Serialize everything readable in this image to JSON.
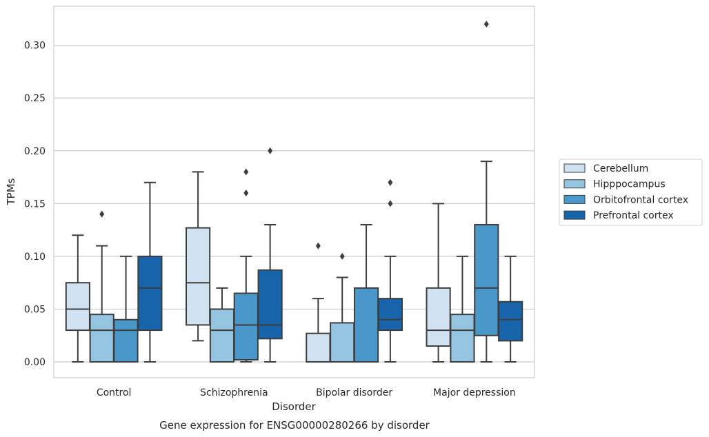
{
  "caption": "Gene expression for ENSG00000280266 by disorder",
  "chart_data": {
    "type": "box",
    "title": "",
    "xlabel": "Disorder",
    "ylabel": "TPMs",
    "ylim": [
      -0.015,
      0.337
    ],
    "yticks": [
      0.0,
      0.05,
      0.1,
      0.15,
      0.2,
      0.25,
      0.3
    ],
    "ytick_labels": [
      "0.00",
      "0.05",
      "0.10",
      "0.15",
      "0.20",
      "0.25",
      "0.30"
    ],
    "grid": "horizontal",
    "legend_position": "right",
    "categories": [
      "Control",
      "Schizophrenia",
      "Bipolar disorder",
      "Major depression"
    ],
    "series": [
      {
        "name": "Cerebellum",
        "color": "#d0e1f2",
        "boxes": [
          {
            "whislo": 0.0,
            "q1": 0.03,
            "med": 0.05,
            "q3": 0.075,
            "whishi": 0.12,
            "fliers": []
          },
          {
            "whislo": 0.02,
            "q1": 0.035,
            "med": 0.075,
            "q3": 0.127,
            "whishi": 0.18,
            "fliers": []
          },
          {
            "whislo": 0.0,
            "q1": 0.0,
            "med": 0.0,
            "q3": 0.027,
            "whishi": 0.06,
            "fliers": [
              0.11
            ]
          },
          {
            "whislo": 0.0,
            "q1": 0.015,
            "med": 0.03,
            "q3": 0.07,
            "whishi": 0.15,
            "fliers": []
          }
        ]
      },
      {
        "name": "Hipppocampus",
        "color": "#94c4df",
        "boxes": [
          {
            "whislo": 0.0,
            "q1": 0.0,
            "med": 0.03,
            "q3": 0.045,
            "whishi": 0.11,
            "fliers": [
              0.14
            ]
          },
          {
            "whislo": 0.0,
            "q1": 0.0,
            "med": 0.03,
            "q3": 0.05,
            "whishi": 0.07,
            "fliers": []
          },
          {
            "whislo": 0.0,
            "q1": 0.0,
            "med": 0.0,
            "q3": 0.037,
            "whishi": 0.08,
            "fliers": [
              0.1
            ]
          },
          {
            "whislo": 0.0,
            "q1": 0.0,
            "med": 0.03,
            "q3": 0.045,
            "whishi": 0.1,
            "fliers": []
          }
        ]
      },
      {
        "name": "Orbitofrontal cortex",
        "color": "#4a98c9",
        "boxes": [
          {
            "whislo": 0.0,
            "q1": 0.0,
            "med": 0.03,
            "q3": 0.04,
            "whishi": 0.1,
            "fliers": []
          },
          {
            "whislo": 0.0,
            "q1": 0.002,
            "med": 0.035,
            "q3": 0.065,
            "whishi": 0.1,
            "fliers": [
              0.16,
              0.18
            ]
          },
          {
            "whislo": 0.0,
            "q1": 0.0,
            "med": 0.0,
            "q3": 0.07,
            "whishi": 0.13,
            "fliers": []
          },
          {
            "whislo": 0.0,
            "q1": 0.025,
            "med": 0.07,
            "q3": 0.13,
            "whishi": 0.19,
            "fliers": [
              0.32
            ]
          }
        ]
      },
      {
        "name": "Prefrontal cortex",
        "color": "#1764ab",
        "boxes": [
          {
            "whislo": 0.0,
            "q1": 0.03,
            "med": 0.07,
            "q3": 0.1,
            "whishi": 0.17,
            "fliers": []
          },
          {
            "whislo": 0.0,
            "q1": 0.022,
            "med": 0.035,
            "q3": 0.087,
            "whishi": 0.13,
            "fliers": [
              0.2
            ]
          },
          {
            "whislo": 0.0,
            "q1": 0.03,
            "med": 0.04,
            "q3": 0.06,
            "whishi": 0.1,
            "fliers": [
              0.15,
              0.17
            ]
          },
          {
            "whislo": 0.0,
            "q1": 0.02,
            "med": 0.04,
            "q3": 0.057,
            "whishi": 0.1,
            "fliers": []
          }
        ]
      }
    ]
  }
}
